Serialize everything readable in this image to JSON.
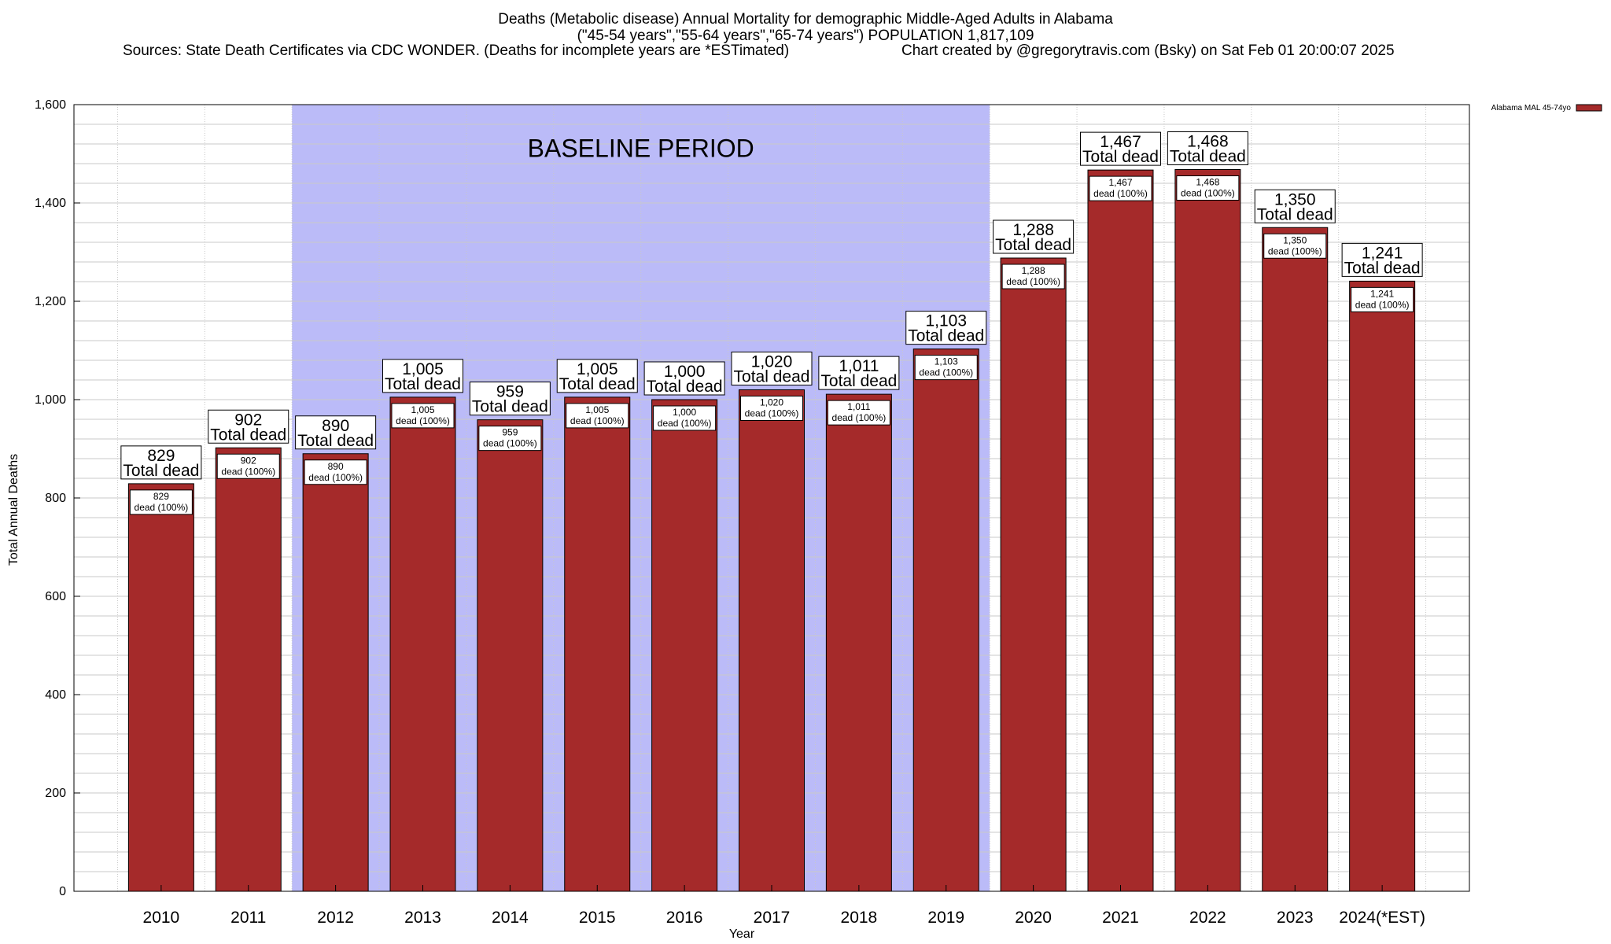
{
  "title": {
    "line1": "Deaths (Metabolic disease) Annual Mortality for demographic Middle-Aged Adults in Alabama",
    "line2": "(\"45-54 years\",\"55-64 years\",\"65-74 years\") POPULATION 1,817,109",
    "sources": "Sources: State Death Certificates via CDC WONDER. (Deaths for incomplete years are *ESTimated)",
    "credit": "Chart created by @gregorytravis.com (Bsky) on Sat Feb 01 20:00:07 2025"
  },
  "chart_data": {
    "type": "bar",
    "categories": [
      "2010",
      "2011",
      "2012",
      "2013",
      "2014",
      "2015",
      "2016",
      "2017",
      "2018",
      "2019",
      "2020",
      "2021",
      "2022",
      "2023",
      "2024(*EST)"
    ],
    "values": [
      829,
      902,
      890,
      1005,
      959,
      1005,
      1000,
      1020,
      1011,
      1103,
      1288,
      1467,
      1468,
      1350,
      1241
    ],
    "value_labels": [
      "829",
      "902",
      "890",
      "1,005",
      "959",
      "1,005",
      "1,000",
      "1,020",
      "1,011",
      "1,103",
      "1,288",
      "1,467",
      "1,468",
      "1,350",
      "1,241"
    ],
    "big_label_suffix": "Total dead",
    "inner_label_suffix": "dead (100%)",
    "xlabel": "Year",
    "ylabel": "Total Annual Deaths",
    "ylim": [
      0,
      1600
    ],
    "yticks": [
      0,
      200,
      400,
      600,
      800,
      1000,
      1200,
      1400,
      1600
    ],
    "ytick_labels": [
      "0",
      "200",
      "400",
      "600",
      "800",
      "1,000",
      "1,200",
      "1,400",
      "1,600"
    ],
    "minor_grid_step": 40,
    "baseline_period": {
      "label": "BASELINE PERIOD",
      "start": "2012",
      "end": "2019"
    },
    "legend": {
      "label": "Alabama MAL 45-74yo",
      "placement": "top-right"
    },
    "colors": {
      "bar": "#a52a2a",
      "baseline": "#bbbbf8",
      "grid": "#c8c8c8"
    }
  }
}
